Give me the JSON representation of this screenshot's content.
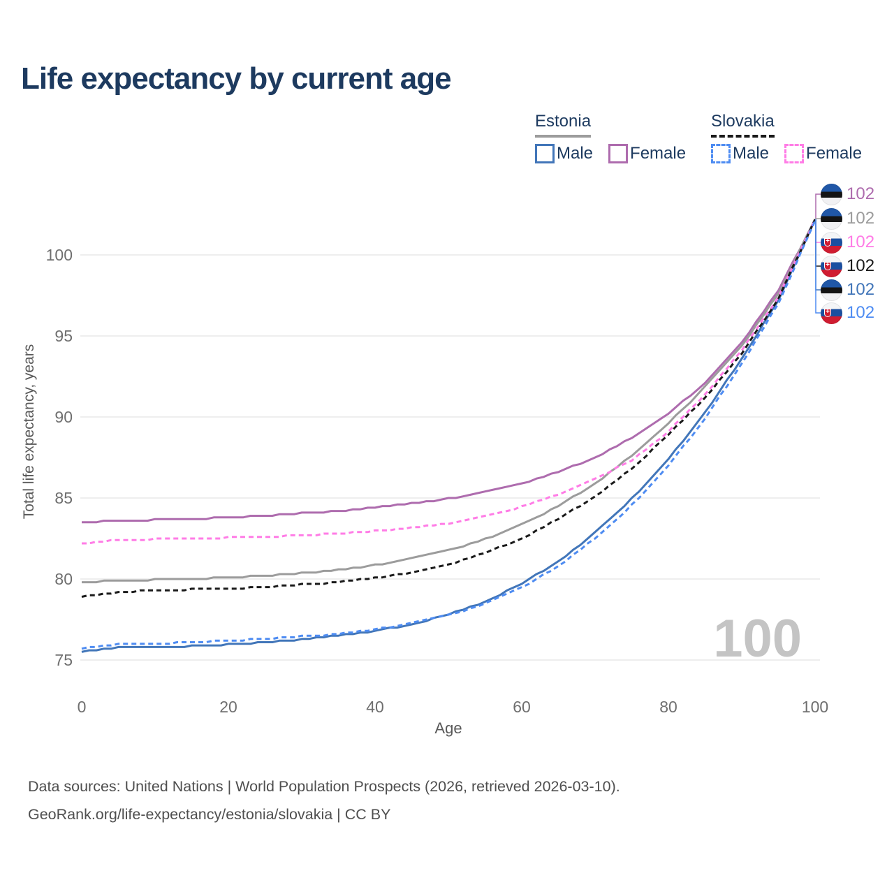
{
  "title": "Life expectancy by current age",
  "legend": {
    "groups": [
      {
        "country": "Estonia",
        "line_style": "solid",
        "rule_color": "#9c9c9c",
        "items": [
          {
            "label": "Male",
            "color": "#4276b9",
            "box_style": "solid"
          },
          {
            "label": "Female",
            "color": "#ae6cae",
            "box_style": "solid"
          }
        ]
      },
      {
        "country": "Slovakia",
        "line_style": "dashed",
        "rule_color": "#1a1a1a",
        "items": [
          {
            "label": "Male",
            "color": "#4e8cf2",
            "box_style": "dashed"
          },
          {
            "label": "Female",
            "color": "#ff7ce6",
            "box_style": "dashed"
          }
        ]
      }
    ]
  },
  "chart_data": {
    "type": "line",
    "title": "Life expectancy by current age",
    "xlabel": "Age",
    "ylabel": "Total life expectancy, years",
    "xlim": [
      0,
      100
    ],
    "ylim": [
      74,
      103
    ],
    "xticks": [
      0,
      20,
      40,
      60,
      80,
      100
    ],
    "yticks": [
      75,
      80,
      85,
      90,
      95,
      100
    ],
    "grid": "horizontal",
    "legend_position": "top-right",
    "x": [
      0,
      5,
      10,
      15,
      20,
      25,
      30,
      35,
      40,
      45,
      50,
      55,
      60,
      65,
      70,
      75,
      80,
      85,
      90,
      95,
      100
    ],
    "series": [
      {
        "name": "Estonia Female",
        "country": "Estonia",
        "sex": "Female",
        "color": "#ae6cae",
        "dash": "solid",
        "values": [
          83.5,
          83.6,
          83.65,
          83.7,
          83.8,
          83.9,
          84.05,
          84.2,
          84.4,
          84.65,
          84.95,
          85.35,
          85.9,
          86.6,
          87.5,
          88.7,
          90.2,
          92.1,
          94.6,
          97.8,
          102.2
        ]
      },
      {
        "name": "Estonia (both sexes)",
        "country": "Estonia",
        "sex": "All",
        "color": "#9c9c9c",
        "dash": "solid",
        "values": [
          79.8,
          79.9,
          79.95,
          80.0,
          80.1,
          80.2,
          80.35,
          80.55,
          80.85,
          81.25,
          81.75,
          82.45,
          83.35,
          84.5,
          85.9,
          87.6,
          89.6,
          91.85,
          94.4,
          97.6,
          102.2
        ]
      },
      {
        "name": "Estonia Male",
        "country": "Estonia",
        "sex": "Male",
        "color": "#4276b9",
        "dash": "solid",
        "values": [
          75.5,
          75.75,
          75.8,
          75.85,
          75.95,
          76.1,
          76.25,
          76.5,
          76.8,
          77.2,
          77.8,
          78.6,
          79.7,
          81.1,
          82.85,
          84.95,
          87.4,
          90.25,
          93.6,
          97.2,
          102.2
        ]
      },
      {
        "name": "Slovakia Female",
        "country": "Slovakia",
        "sex": "Female",
        "color": "#ff7ce6",
        "dash": "dashed",
        "values": [
          82.2,
          82.4,
          82.45,
          82.5,
          82.55,
          82.6,
          82.7,
          82.8,
          82.95,
          83.15,
          83.4,
          83.85,
          84.45,
          85.2,
          86.2,
          87.3,
          89.1,
          91.4,
          94.1,
          97.4,
          102.2
        ]
      },
      {
        "name": "Slovakia (both sexes)",
        "country": "Slovakia",
        "sex": "All",
        "color": "#1a1a1a",
        "dash": "dashed",
        "values": [
          78.9,
          79.2,
          79.3,
          79.35,
          79.4,
          79.5,
          79.65,
          79.8,
          80.05,
          80.4,
          80.9,
          81.6,
          82.5,
          83.7,
          85.1,
          86.8,
          88.9,
          91.2,
          93.9,
          97.3,
          102.2
        ]
      },
      {
        "name": "Slovakia Male",
        "country": "Slovakia",
        "sex": "Male",
        "color": "#4e8cf2",
        "dash": "dashed",
        "values": [
          75.7,
          75.95,
          76.0,
          76.1,
          76.2,
          76.3,
          76.45,
          76.6,
          76.9,
          77.25,
          77.75,
          78.45,
          79.45,
          80.8,
          82.5,
          84.55,
          87.0,
          89.9,
          93.3,
          97.0,
          102.1
        ]
      }
    ]
  },
  "right_labels": [
    {
      "series": "Estonia Female",
      "flag": "ee",
      "value": "102",
      "color": "#ae6cae"
    },
    {
      "series": "Estonia both sexes",
      "flag": "ee",
      "value": "102",
      "color": "#9c9c9c"
    },
    {
      "series": "Slovakia Female",
      "flag": "sk",
      "value": "102",
      "color": "#ff7ce6"
    },
    {
      "series": "Slovakia both sexes",
      "flag": "sk",
      "value": "102",
      "color": "#1a1a1a"
    },
    {
      "series": "Estonia Male",
      "flag": "ee",
      "value": "102",
      "color": "#4276b9"
    },
    {
      "series": "Slovakia Male",
      "flag": "sk",
      "value": "102",
      "color": "#4e8cf2"
    }
  ],
  "watermark": "100",
  "footer": {
    "line1": "Data sources: United Nations | World Population Prospects (2026, retrieved 2026-03-10).",
    "line2": "GeoRank.org/life-expectancy/estonia/slovakia | CC BY"
  }
}
